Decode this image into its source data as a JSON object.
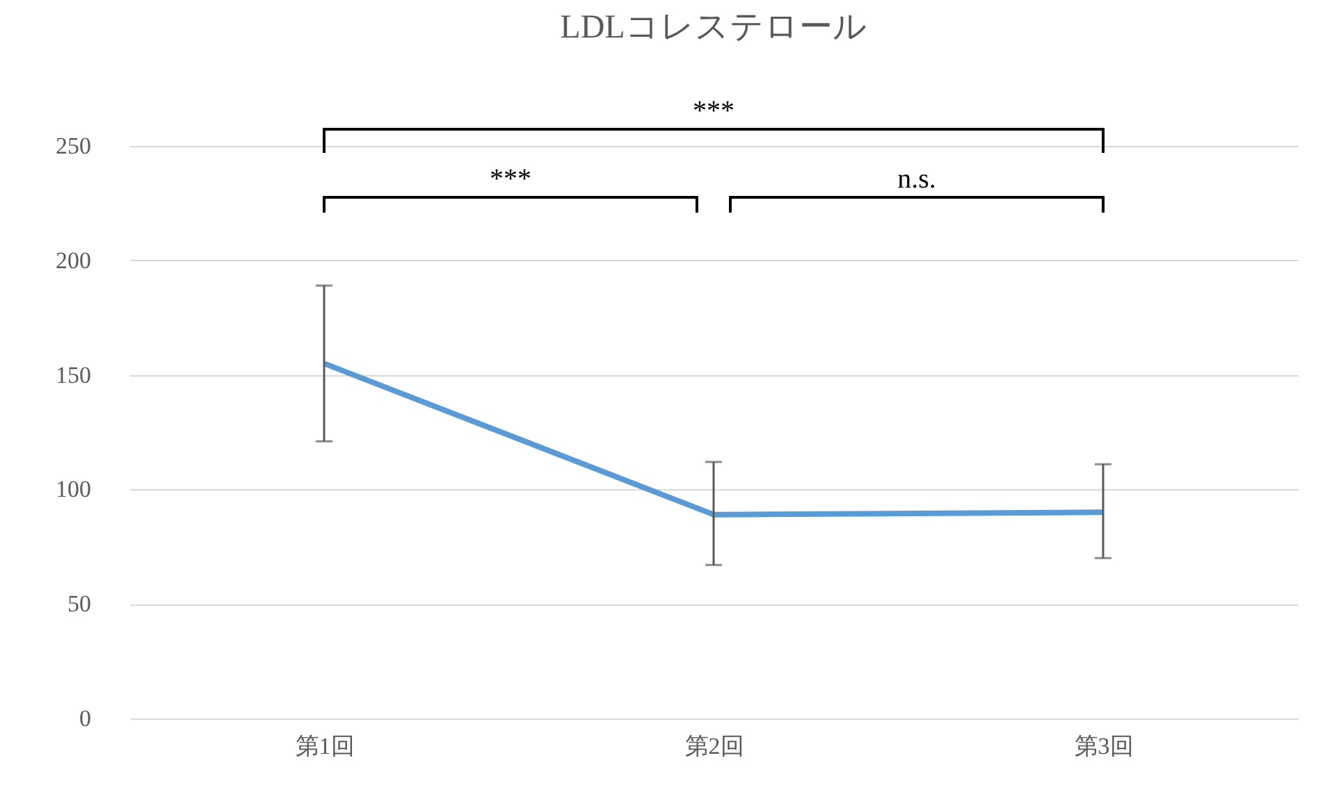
{
  "chart_data": {
    "type": "line",
    "title": "LDLコレステロール",
    "categories": [
      "第1回",
      "第2回",
      "第3回"
    ],
    "series": [
      {
        "color": "#5b9bd5",
        "values": [
          155,
          89,
          90
        ],
        "errors": [
          [
            121,
            189
          ],
          [
            67,
            112
          ],
          [
            70,
            111
          ]
        ]
      }
    ],
    "ylim": [
      0,
      250
    ],
    "yticks": [
      0,
      50,
      100,
      150,
      200,
      250
    ],
    "grid": "y",
    "marker": "none",
    "line_style": "solid",
    "annotations": [
      "***",
      "***",
      "n.s."
    ]
  }
}
